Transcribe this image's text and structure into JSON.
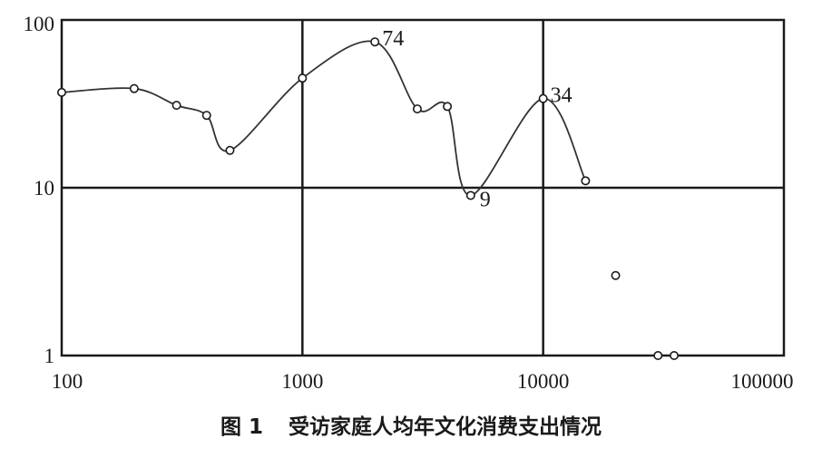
{
  "caption": {
    "number": "图 1",
    "text": "受访家庭人均年文化消费支出情况"
  },
  "chart_data": {
    "type": "scatter",
    "x_scale": "log",
    "y_scale": "log",
    "xlim": [
      100,
      100000
    ],
    "ylim": [
      1,
      100
    ],
    "x_ticks": [
      "100",
      "1000",
      "10000",
      "100000"
    ],
    "y_ticks": [
      "1",
      "10",
      "100"
    ],
    "grid": true,
    "line_color": "#333333",
    "points_connected": [
      {
        "x": 100,
        "y": 37
      },
      {
        "x": 200,
        "y": 39
      },
      {
        "x": 300,
        "y": 31
      },
      {
        "x": 400,
        "y": 27
      },
      {
        "x": 500,
        "y": 16.7
      },
      {
        "x": 1000,
        "y": 45
      },
      {
        "x": 2000,
        "y": 74,
        "label": "74"
      },
      {
        "x": 3000,
        "y": 29.5
      },
      {
        "x": 4000,
        "y": 30.5
      },
      {
        "x": 5000,
        "y": 9,
        "label": "9"
      },
      {
        "x": 10000,
        "y": 34,
        "label": "34"
      },
      {
        "x": 15000,
        "y": 11
      }
    ],
    "points_isolated": [
      {
        "x": 20000,
        "y": 3
      },
      {
        "x": 30000,
        "y": 1
      },
      {
        "x": 35000,
        "y": 1
      }
    ]
  }
}
